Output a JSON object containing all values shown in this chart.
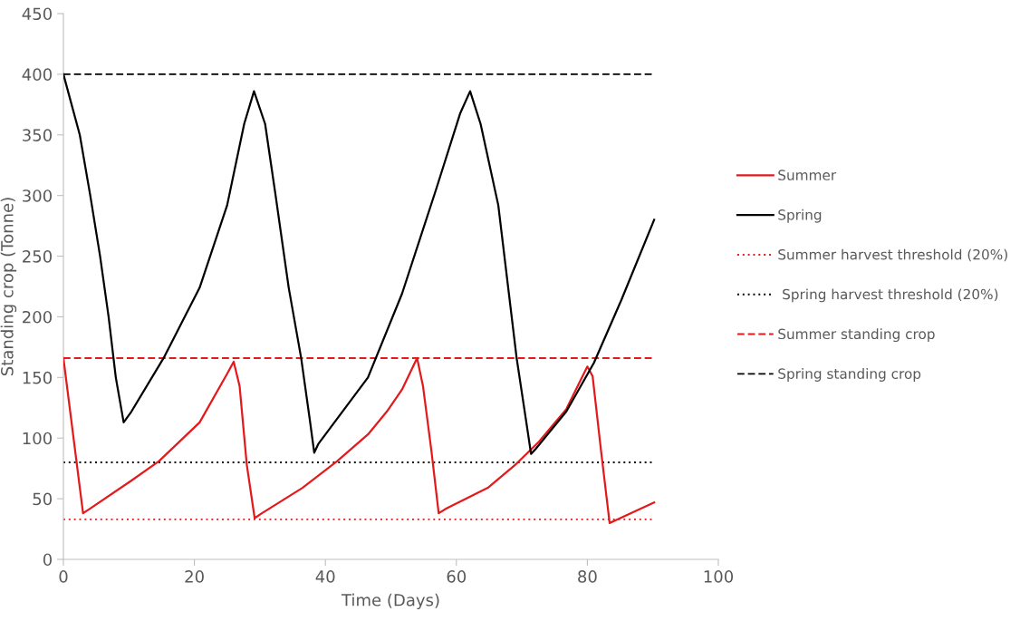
{
  "chart_data": {
    "type": "line",
    "xlabel": "Time (Days)",
    "ylabel": "Standing crop (Tonne)",
    "xlim": [
      0,
      100
    ],
    "xticks": [
      0,
      20,
      40,
      60,
      80,
      100
    ],
    "ylim": [
      0,
      450
    ],
    "yticks": [
      0,
      50,
      100,
      150,
      200,
      250,
      300,
      350,
      400,
      450
    ],
    "grid": false,
    "legend": "right",
    "marker": "none",
    "line_style": "solid",
    "series": [
      {
        "name": "Summer",
        "color": "#e31a1c",
        "x": [
          0,
          3.0,
          4.1,
          10.4,
          14.6,
          20.8,
          25.0,
          26.0,
          26.9,
          28.0,
          29.2,
          30.3,
          36.5,
          41.8,
          46.5,
          49.4,
          51.7,
          54.0,
          54.9,
          56.2,
          57.3,
          58.5,
          64.8,
          69.0,
          72.6,
          76.8,
          80.0,
          80.8,
          82.1,
          83.4,
          84.2,
          90.2
        ],
        "values": [
          166,
          38,
          42,
          65,
          81,
          113,
          153,
          163,
          143,
          78,
          34,
          38,
          59,
          81,
          103,
          122,
          140,
          166,
          143,
          89,
          38,
          42,
          59,
          78,
          97,
          124,
          159,
          151,
          89,
          30,
          32,
          47
        ]
      },
      {
        "name": "Spring",
        "color": "#000000",
        "x": [
          0,
          2.5,
          4.1,
          5.6,
          6.9,
          8.0,
          9.2,
          10.4,
          15.3,
          20.8,
          25.0,
          27.6,
          29.1,
          30.8,
          32.4,
          34.4,
          36.3,
          37.6,
          38.3,
          38.9,
          46.5,
          51.7,
          56.9,
          60.6,
          62.1,
          63.7,
          66.4,
          69.2,
          70.6,
          71.4,
          72.1,
          76.8,
          81.0,
          85.2,
          90.2
        ],
        "values": [
          400,
          350,
          300,
          250,
          200,
          150,
          113,
          122,
          166,
          224,
          292,
          359,
          386,
          359,
          300,
          224,
          166,
          116,
          88,
          95,
          150,
          219,
          305,
          368,
          386,
          359,
          292,
          166,
          116,
          87,
          91,
          122,
          162,
          214,
          280
        ]
      }
    ],
    "ref_lines": [
      {
        "axis": "y",
        "value": 33,
        "label": "Summer harvest threshold (20%)",
        "color": "#e31a1c",
        "line_style": "dotted"
      },
      {
        "axis": "y",
        "value": 80,
        "label": " Spring harvest threshold (20%)",
        "color": "#000000",
        "line_style": "dotted"
      },
      {
        "axis": "y",
        "value": 166,
        "label": "Summer standing crop",
        "color": "#e31a1c",
        "line_style": "dashed"
      },
      {
        "axis": "y",
        "value": 400,
        "label": "Spring standing crop",
        "color": "#000000",
        "line_style": "dashed"
      }
    ]
  }
}
